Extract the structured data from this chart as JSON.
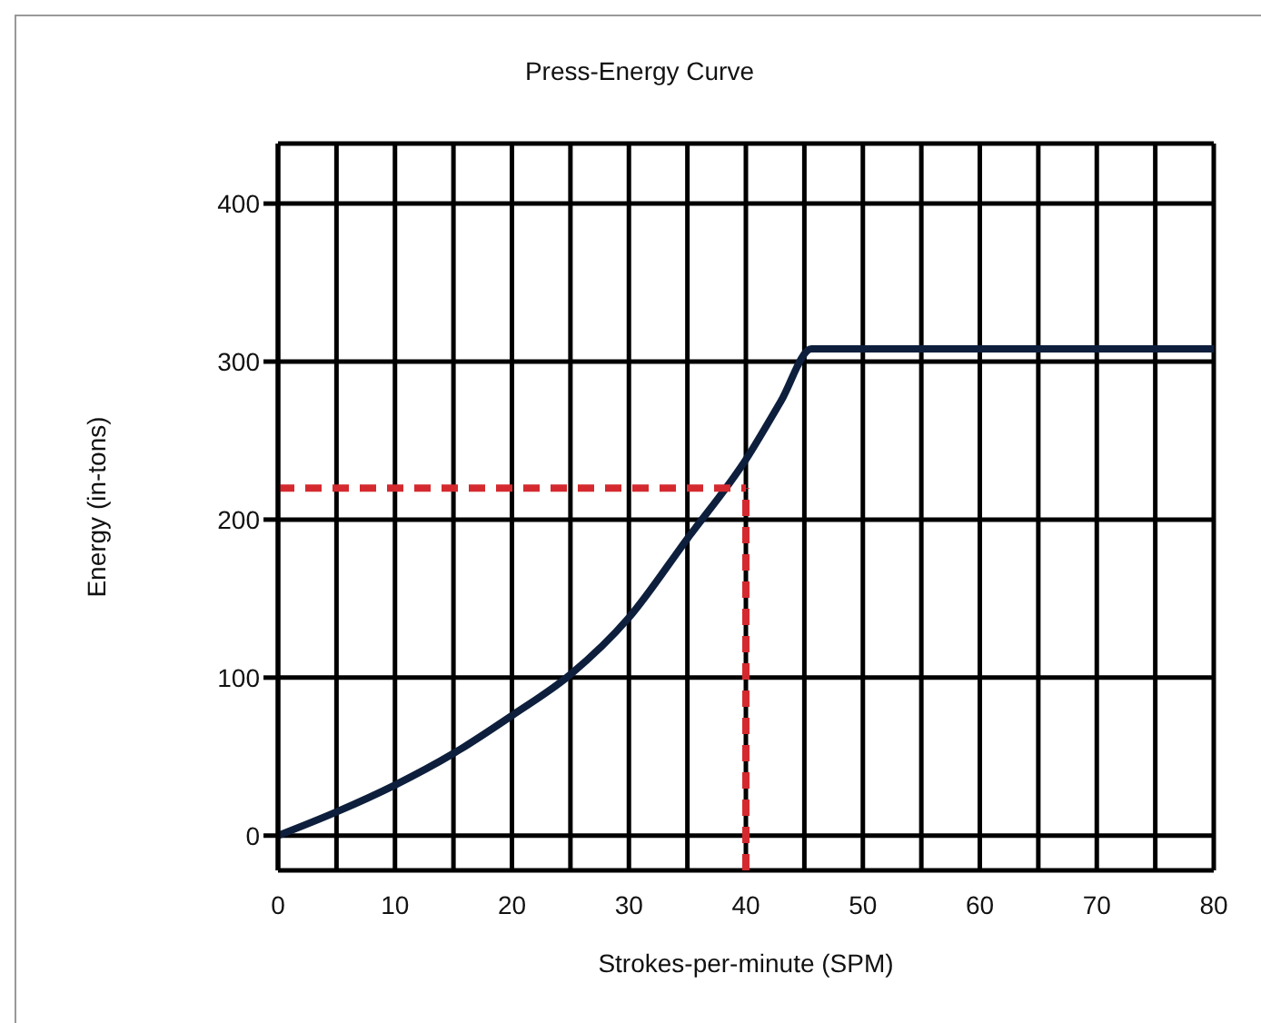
{
  "chart_data": {
    "type": "line",
    "title": "Press-Energy Curve",
    "xlabel": "Strokes-per-minute (SPM)",
    "ylabel": "Energy (in-tons)",
    "x": [
      0,
      5,
      10,
      15,
      20,
      25,
      30,
      35,
      40,
      43,
      45.6,
      80
    ],
    "series": [
      {
        "color": "#0d1f3c",
        "values": [
          0,
          15,
          32,
          52,
          76,
          102,
          138,
          188,
          238,
          275,
          308,
          308
        ]
      }
    ],
    "xlim": [
      0,
      80
    ],
    "ylim": [
      -22,
      438
    ],
    "xticks": [
      0,
      {
        "value": 5,
        "label": null
      },
      10,
      {
        "value": 15,
        "label": null
      },
      20,
      {
        "value": 25,
        "label": null
      },
      30,
      {
        "value": 35,
        "label": null
      },
      40,
      {
        "value": 45,
        "label": null
      },
      50,
      {
        "value": 55,
        "label": null
      },
      60,
      {
        "value": 65,
        "label": null
      },
      70,
      {
        "value": 75,
        "label": null
      },
      80
    ],
    "yticks": [
      0,
      100,
      200,
      300,
      400
    ],
    "ref_lines": [
      {
        "axis": "y",
        "value": 220,
        "color": "#d42a2f",
        "line_style": "dashed"
      },
      {
        "axis": "x",
        "value": 40,
        "color": "#d42a2f",
        "line_style": "dashed"
      }
    ],
    "grid": true,
    "legend": false,
    "marker": "none",
    "line_style": "solid"
  }
}
